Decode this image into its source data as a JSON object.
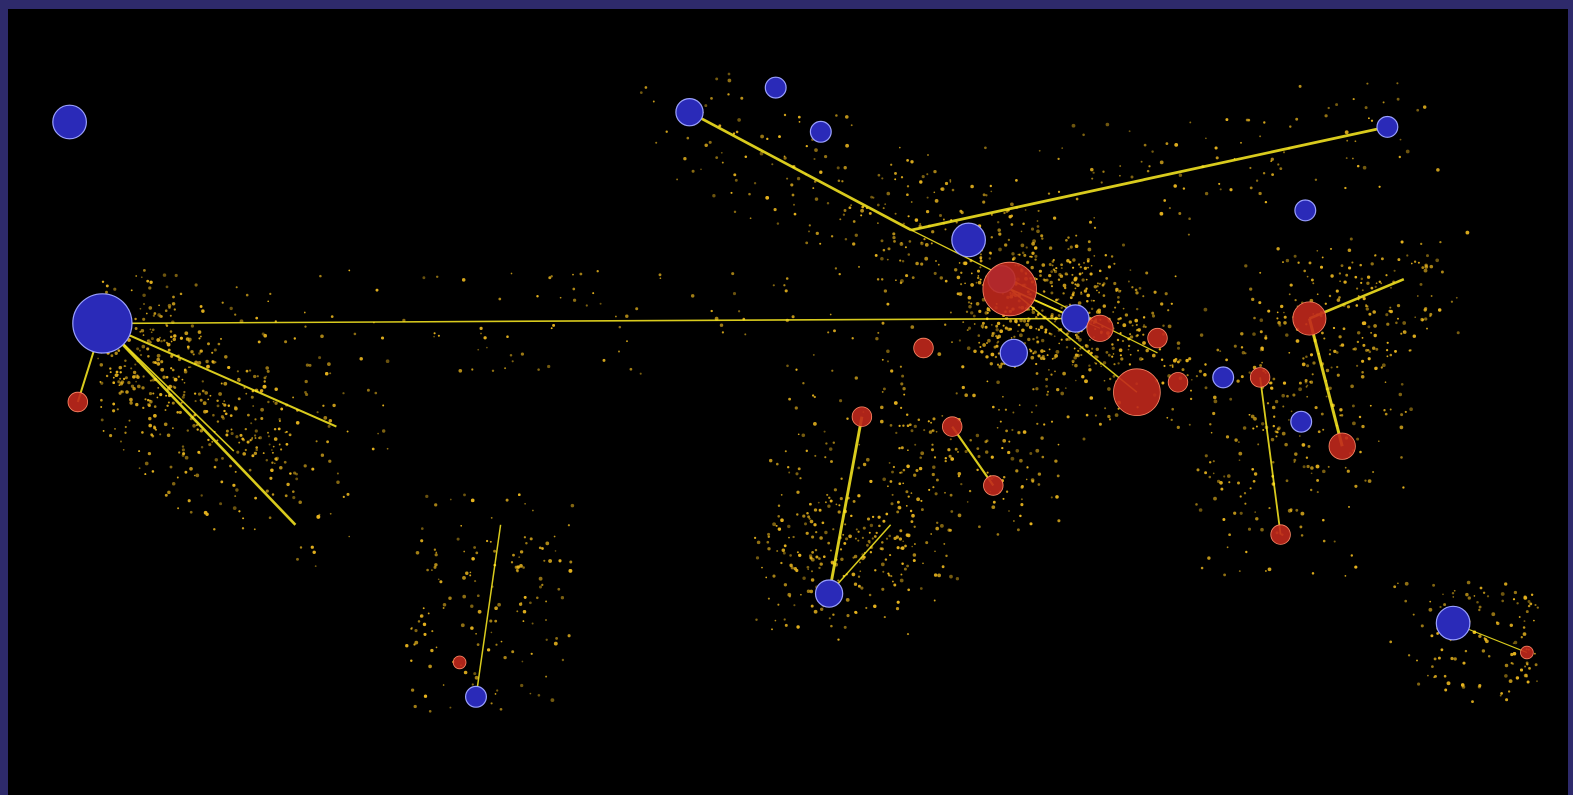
{
  "title": "",
  "frame_color": "#2e2a6b",
  "background_color": "#000000",
  "edge_color": "#ffee22",
  "flow_dot_color": "#e6b31e",
  "node_colors": {
    "positive": "#c0281c",
    "negative": "#2a2ab8",
    "outline": "#9aa0ff"
  },
  "legend": [],
  "nodes": {
    "negative": [
      {
        "lon": -165,
        "lat": 62,
        "weight": 4
      },
      {
        "lon": -157,
        "lat": 21,
        "weight": 8
      },
      {
        "lon": -14,
        "lat": 64,
        "weight": 3
      },
      {
        "lon": 7,
        "lat": 69,
        "weight": 2
      },
      {
        "lon": 18,
        "lat": 60,
        "weight": 2
      },
      {
        "lon": 54,
        "lat": 38,
        "weight": 4
      },
      {
        "lon": 62,
        "lat": 30,
        "weight": 3
      },
      {
        "lon": 80,
        "lat": 22,
        "weight": 3
      },
      {
        "lon": 156,
        "lat": 61,
        "weight": 2
      },
      {
        "lon": 136,
        "lat": 44,
        "weight": 2
      },
      {
        "lon": 116,
        "lat": 10,
        "weight": 2
      },
      {
        "lon": 172,
        "lat": -40,
        "weight": 4
      },
      {
        "lon": 20,
        "lat": -34,
        "weight": 3
      },
      {
        "lon": -66,
        "lat": -55,
        "weight": 2
      },
      {
        "lon": 65,
        "lat": 15,
        "weight": 3
      },
      {
        "lon": 135,
        "lat": 1,
        "weight": 2
      }
    ],
    "positive": [
      {
        "lon": -163,
        "lat": 5,
        "weight": 2
      },
      {
        "lon": 64,
        "lat": 28,
        "weight": 7
      },
      {
        "lon": 95,
        "lat": 7,
        "weight": 6
      },
      {
        "lon": 137,
        "lat": 22,
        "weight": 4
      },
      {
        "lon": 145,
        "lat": -4,
        "weight": 3
      },
      {
        "lon": 86,
        "lat": 20,
        "weight": 3
      },
      {
        "lon": 50,
        "lat": 0,
        "weight": 2
      },
      {
        "lon": 60,
        "lat": -12,
        "weight": 2
      },
      {
        "lon": 105,
        "lat": 9,
        "weight": 2
      },
      {
        "lon": 125,
        "lat": 10,
        "weight": 2
      },
      {
        "lon": 130,
        "lat": -22,
        "weight": 2
      },
      {
        "lon": -70,
        "lat": -48,
        "weight": 1
      },
      {
        "lon": 100,
        "lat": 18,
        "weight": 2
      },
      {
        "lon": 43,
        "lat": 16,
        "weight": 2
      },
      {
        "lon": 28,
        "lat": 2,
        "weight": 2
      },
      {
        "lon": 190,
        "lat": -46,
        "weight": 1
      }
    ]
  },
  "routes": [
    [
      -157,
      21,
      -163,
      5
    ],
    [
      -157,
      21,
      -100,
      0
    ],
    [
      -157,
      21,
      -125,
      -5
    ],
    [
      -157,
      21,
      -110,
      -20
    ],
    [
      -157,
      21,
      80,
      22
    ],
    [
      -14,
      64,
      40,
      40
    ],
    [
      156,
      61,
      40,
      40
    ],
    [
      64,
      28,
      80,
      22
    ],
    [
      64,
      28,
      95,
      7
    ],
    [
      64,
      28,
      86,
      20
    ],
    [
      50,
      0,
      60,
      -12
    ],
    [
      20,
      -34,
      28,
      2
    ],
    [
      20,
      -34,
      35,
      -20
    ],
    [
      137,
      22,
      145,
      -4
    ],
    [
      137,
      22,
      160,
      30
    ],
    [
      125,
      10,
      130,
      -22
    ],
    [
      -66,
      -55,
      -60,
      -20
    ],
    [
      172,
      -40,
      190,
      -46
    ],
    [
      40,
      40,
      100,
      15
    ]
  ],
  "flow_density": 3200
}
